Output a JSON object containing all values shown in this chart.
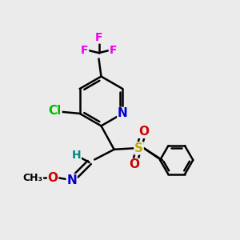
{
  "bg_color": "#ebebeb",
  "bond_color": "#000000",
  "bond_width": 1.8,
  "atom_colors": {
    "F": "#ee00ee",
    "Cl": "#00bb00",
    "N": "#0000cc",
    "O": "#cc0000",
    "S": "#bbaa00",
    "H": "#008888",
    "C": "#000000"
  },
  "font_size": 10
}
